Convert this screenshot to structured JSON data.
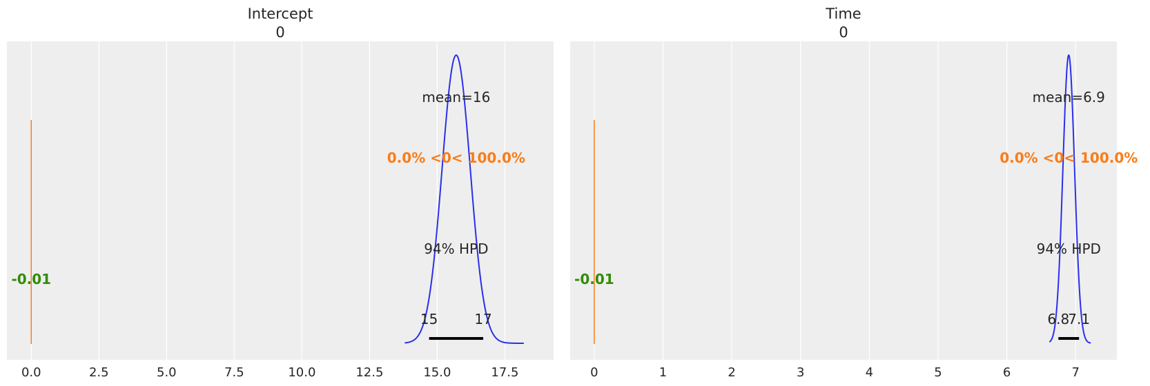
{
  "colors": {
    "background": "#eeeeee",
    "grid": "#ffffff",
    "density": "#2a2eec",
    "reference_line": "#fa7c17",
    "reference_text": "#fa7c17",
    "rope_text": "#328c06",
    "hpd_bar": "#000000",
    "text": "#262626"
  },
  "chart_data": [
    {
      "type": "line",
      "kind": "posterior",
      "title": "Intercept",
      "subtitle": "0",
      "xlim": [
        -0.9,
        19.3
      ],
      "xticks": [
        0.0,
        2.5,
        5.0,
        7.5,
        10.0,
        12.5,
        15.0,
        17.5
      ],
      "xtick_labels": [
        "0.0",
        "2.5",
        "5.0",
        "7.5",
        "10.0",
        "12.5",
        "15.0",
        "17.5"
      ],
      "grid": true,
      "density": {
        "mean": 15.7,
        "sd": 0.52,
        "x_min": 13.8,
        "x_max": 18.2
      },
      "point_estimate_label": "mean=16",
      "reference_value": 0,
      "reference_label": "0.0% <0< 100.0%",
      "rope_label": "-0.01",
      "hpd_label": "94% HPD",
      "hpd_interval": [
        14.7,
        16.7
      ],
      "hpd_tick_labels": [
        "15",
        "17"
      ]
    },
    {
      "type": "line",
      "kind": "posterior",
      "title": "Time",
      "subtitle": "0",
      "xlim": [
        -0.35,
        7.6
      ],
      "xticks": [
        0,
        1,
        2,
        3,
        4,
        5,
        6,
        7
      ],
      "xtick_labels": [
        "0",
        "1",
        "2",
        "3",
        "4",
        "5",
        "6",
        "7"
      ],
      "grid": true,
      "density": {
        "mean": 6.9,
        "sd": 0.085,
        "x_min": 6.62,
        "x_max": 7.22
      },
      "point_estimate_label": "mean=6.9",
      "reference_value": 0,
      "reference_label": "0.0% <0< 100.0%",
      "rope_label": "-0.01",
      "hpd_label": "94% HPD",
      "hpd_interval": [
        6.75,
        7.05
      ],
      "hpd_tick_labels": [
        "6.8",
        "7.1"
      ]
    }
  ]
}
